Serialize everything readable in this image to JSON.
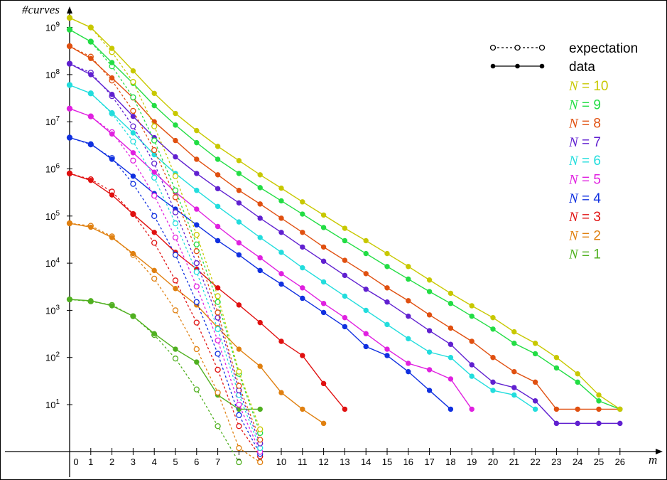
{
  "chart_data": {
    "type": "line",
    "title": "",
    "xlabel": "m",
    "ylabel": "#curves",
    "x_scale": "linear",
    "y_scale": "log",
    "xlim": [
      0,
      27
    ],
    "ylim": [
      1,
      1600000000
    ],
    "x_ticks": [
      "0",
      "1",
      "2",
      "3",
      "4",
      "5",
      "6",
      "7",
      "8",
      "9",
      "10",
      "11",
      "12",
      "13",
      "14",
      "15",
      "16",
      "17",
      "18",
      "19",
      "20",
      "21",
      "22",
      "23",
      "24",
      "25",
      "26"
    ],
    "y_ticks": [
      {
        "mantissa": "10",
        "exp": "1",
        "value": 10
      },
      {
        "mantissa": "10",
        "exp": "2",
        "value": 100
      },
      {
        "mantissa": "10",
        "exp": "3",
        "value": 1000
      },
      {
        "mantissa": "10",
        "exp": "4",
        "value": 10000
      },
      {
        "mantissa": "10",
        "exp": "5",
        "value": 100000
      },
      {
        "mantissa": "10",
        "exp": "6",
        "value": 1000000
      },
      {
        "mantissa": "10",
        "exp": "7",
        "value": 10000000
      },
      {
        "mantissa": "10",
        "exp": "8",
        "value": 100000000
      },
      {
        "mantissa": "10",
        "exp": "9",
        "value": 1000000000
      }
    ],
    "legend": {
      "placement": "top-right",
      "styles": [
        {
          "label": "expectation",
          "style": "dotted",
          "marker": "open-circle"
        },
        {
          "label": "data",
          "style": "solid",
          "marker": "filled-circle"
        }
      ]
    },
    "series": [
      {
        "label_var": "N",
        "label_eq": " = ",
        "label_num": "10",
        "color": "#c8c800",
        "data": {
          "x": [
            0,
            1,
            2,
            3,
            4,
            5,
            6,
            7,
            8,
            9,
            10,
            11,
            12,
            13,
            14,
            15,
            16,
            17,
            18,
            19,
            20,
            21,
            22,
            23,
            24,
            25,
            26
          ],
          "y": [
            1600000000,
            1000000000,
            360000000,
            120000000,
            40000000,
            15000000,
            6500000,
            3000000,
            1500000,
            750000,
            390000,
            200000,
            105000,
            55000,
            30000,
            16000,
            8500,
            4400,
            2300,
            1250,
            700,
            350,
            200,
            100,
            45,
            16,
            8
          ]
        },
        "expectation": {
          "x": [
            0,
            1,
            2,
            3,
            4,
            5,
            6,
            7,
            8,
            9
          ],
          "y": [
            1600000000,
            1000000000,
            300000000,
            70000000,
            8000000,
            700000,
            40000,
            2000,
            50,
            3
          ]
        }
      },
      {
        "label_var": "N",
        "label_eq": " = ",
        "label_num": "9",
        "color": "#22dd44",
        "data": {
          "x": [
            0,
            1,
            2,
            3,
            4,
            5,
            6,
            7,
            8,
            9,
            10,
            11,
            12,
            13,
            14,
            15,
            16,
            17,
            18,
            19,
            20,
            21,
            22,
            23,
            24,
            25,
            26
          ],
          "y": [
            900000000,
            500000000,
            180000000,
            65000000,
            22000000,
            8500000,
            3600000,
            1600000,
            800000,
            400000,
            210000,
            110000,
            57000,
            30000,
            16000,
            8500,
            4600,
            2500,
            1400,
            750,
            400,
            200,
            120,
            60,
            30,
            12,
            8
          ]
        },
        "expectation": {
          "x": [
            0,
            1,
            2,
            3,
            4,
            5,
            6,
            7,
            8,
            9
          ],
          "y": [
            900000000,
            500000000,
            150000000,
            33000000,
            4000000,
            350000,
            25000,
            1500,
            45,
            2.5
          ]
        }
      },
      {
        "label_var": "N",
        "label_eq": " = ",
        "label_num": "8",
        "color": "#e05010",
        "data": {
          "x": [
            0,
            1,
            2,
            3,
            4,
            5,
            6,
            7,
            8,
            9,
            10,
            11,
            12,
            13,
            14,
            15,
            16,
            17,
            18,
            19,
            20,
            21,
            22,
            23,
            24,
            25,
            26
          ],
          "y": [
            400000000,
            220000000,
            85000000,
            32000000,
            10000000,
            4000000,
            1600000,
            750000,
            350000,
            180000,
            90000,
            45000,
            22000,
            11500,
            6000,
            3000,
            1600,
            800,
            420,
            220,
            100,
            50,
            30,
            8,
            8,
            8,
            8
          ]
        },
        "expectation": {
          "x": [
            0,
            1,
            2,
            3,
            4,
            5,
            6,
            7,
            8,
            9
          ],
          "y": [
            400000000,
            240000000,
            75000000,
            17000000,
            2500000,
            250000,
            18000,
            900,
            25,
            1.8
          ]
        }
      },
      {
        "label_var": "N",
        "label_eq": " = ",
        "label_num": "7",
        "color": "#6020d0",
        "data": {
          "x": [
            0,
            1,
            2,
            3,
            4,
            5,
            6,
            7,
            8,
            9,
            10,
            11,
            12,
            13,
            14,
            15,
            16,
            17,
            18,
            19,
            20,
            21,
            22,
            23,
            24,
            25,
            26
          ],
          "y": [
            170000000,
            100000000,
            38000000,
            13000000,
            4600000,
            1800000,
            800000,
            380000,
            190000,
            90000,
            45000,
            22000,
            11000,
            5500,
            2800,
            1500,
            750,
            370,
            190,
            70,
            30,
            23,
            12,
            4,
            4,
            4,
            4
          ]
        },
        "expectation": {
          "x": [
            0,
            1,
            2,
            3,
            4,
            5,
            6,
            7,
            8,
            9
          ],
          "y": [
            170000000,
            110000000,
            35000000,
            8000000,
            1300000,
            120000,
            10000,
            700,
            20,
            1.5
          ]
        }
      },
      {
        "label_var": "N",
        "label_eq": " = ",
        "label_num": "6",
        "color": "#22dddd",
        "data": {
          "x": [
            0,
            1,
            2,
            3,
            4,
            5,
            6,
            7,
            8,
            9,
            10,
            11,
            12,
            13,
            14,
            15,
            16,
            17,
            18,
            19,
            20,
            21,
            22
          ],
          "y": [
            60000000,
            40000000,
            15500000,
            5800000,
            2000000,
            800000,
            350000,
            160000,
            75000,
            35000,
            17000,
            8000,
            4000,
            2000,
            1000,
            500,
            250,
            130,
            100,
            40,
            20,
            16,
            8
          ]
        },
        "expectation": {
          "x": [
            0,
            1,
            2,
            3,
            4,
            5,
            6,
            7,
            8,
            9
          ],
          "y": [
            60000000,
            40000000,
            15000000,
            3800000,
            650000,
            70000,
            6500,
            400,
            16,
            1.2
          ]
        }
      },
      {
        "label_var": "N",
        "label_eq": " = ",
        "label_num": "5",
        "color": "#e020e0",
        "data": {
          "x": [
            0,
            1,
            2,
            3,
            4,
            5,
            6,
            7,
            8,
            9,
            10,
            11,
            12,
            13,
            14,
            15,
            16,
            17,
            18,
            19
          ],
          "y": [
            19000000,
            13000000,
            5500000,
            2200000,
            850000,
            320000,
            140000,
            60000,
            27000,
            13000,
            6000,
            3000,
            1400,
            700,
            320,
            150,
            75,
            55,
            35,
            8
          ]
        },
        "expectation": {
          "x": [
            0,
            1,
            2,
            3,
            4,
            5,
            6,
            7,
            8,
            9
          ],
          "y": [
            19000000,
            13000000,
            6000000,
            1500000,
            270000,
            35000,
            3200,
            230,
            10,
            1
          ]
        }
      },
      {
        "label_var": "N",
        "label_eq": " = ",
        "label_num": "4",
        "color": "#1030e0",
        "data": {
          "x": [
            0,
            1,
            2,
            3,
            4,
            5,
            6,
            7,
            8,
            9,
            10,
            11,
            12,
            13,
            14,
            15,
            16,
            17,
            18
          ],
          "y": [
            4600000,
            3400000,
            1600000,
            700000,
            300000,
            140000,
            65000,
            30000,
            15000,
            7000,
            3600,
            1800,
            900,
            450,
            170,
            110,
            50,
            20,
            8
          ]
        },
        "expectation": {
          "x": [
            0,
            1,
            2,
            3,
            4,
            5,
            6,
            7,
            8,
            9
          ],
          "y": [
            4600000,
            3300000,
            1700000,
            480000,
            100000,
            15000,
            1500,
            120,
            6,
            0.9
          ]
        }
      },
      {
        "label_var": "N",
        "label_eq": " = ",
        "label_num": "3",
        "color": "#e01010",
        "data": {
          "x": [
            0,
            1,
            2,
            3,
            4,
            5,
            6,
            7,
            8,
            9,
            10,
            11,
            12,
            13
          ],
          "y": [
            800000,
            570000,
            280000,
            110000,
            45000,
            17000,
            7500,
            3000,
            1300,
            550,
            220,
            110,
            28,
            8
          ]
        },
        "expectation": {
          "x": [
            0,
            1,
            2,
            3,
            4,
            5,
            6,
            7,
            8,
            9
          ],
          "y": [
            800000,
            600000,
            330000,
            110000,
            27000,
            4300,
            550,
            55,
            3.5,
            0.8
          ]
        }
      },
      {
        "label_var": "N",
        "label_eq": " = ",
        "label_num": "2",
        "color": "#e08010",
        "data": {
          "x": [
            0,
            1,
            2,
            3,
            4,
            5,
            6,
            7,
            8,
            9,
            10,
            11,
            12
          ],
          "y": [
            70000,
            58000,
            35000,
            16000,
            7000,
            2900,
            1300,
            430,
            150,
            65,
            18,
            8,
            4
          ]
        },
        "expectation": {
          "x": [
            0,
            1,
            2,
            3,
            4,
            5,
            6,
            7,
            8,
            9
          ],
          "y": [
            70000,
            62000,
            37000,
            15000,
            4700,
            1000,
            150,
            18,
            1.2,
            0.6
          ]
        }
      },
      {
        "label_var": "N",
        "label_eq": " = ",
        "label_num": "1",
        "color": "#50b020",
        "data": {
          "x": [
            0,
            1,
            2,
            3,
            4,
            5,
            6,
            7,
            8,
            9
          ],
          "y": [
            1700,
            1600,
            1250,
            750,
            320,
            150,
            80,
            16,
            8,
            8
          ]
        },
        "expectation": {
          "x": [
            0,
            1,
            2,
            3,
            4,
            5,
            6,
            7,
            8
          ],
          "y": [
            1700,
            1550,
            1300,
            750,
            300,
            95,
            21,
            3.5,
            0.6
          ]
        }
      }
    ]
  }
}
